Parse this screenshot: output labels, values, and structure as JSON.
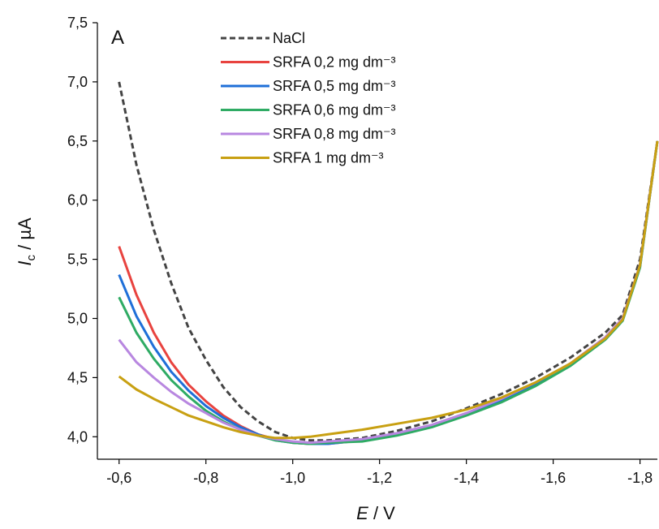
{
  "chart_data": {
    "type": "line",
    "panel_label": "A",
    "x_label": [
      "E",
      "/ V"
    ],
    "y_label": [
      "I",
      "c",
      "/ µA"
    ],
    "x": [
      -0.6,
      -0.64,
      -0.68,
      -0.72,
      -0.76,
      -0.8,
      -0.84,
      -0.88,
      -0.92,
      -0.96,
      -1.0,
      -1.04,
      -1.08,
      -1.16,
      -1.24,
      -1.32,
      -1.4,
      -1.48,
      -1.56,
      -1.64,
      -1.72,
      -1.76,
      -1.8,
      -1.84
    ],
    "series": [
      {
        "name": "NaCl",
        "color": "#444444",
        "dashed": true,
        "values": [
          7.0,
          6.3,
          5.75,
          5.3,
          4.92,
          4.65,
          4.42,
          4.25,
          4.13,
          4.04,
          3.99,
          3.97,
          3.97,
          3.99,
          4.05,
          4.13,
          4.24,
          4.36,
          4.5,
          4.67,
          4.88,
          5.03,
          5.5,
          6.5
        ]
      },
      {
        "name": "SRFA 0,2 mg dm⁻³",
        "color": "#e8433f",
        "values": [
          5.61,
          5.2,
          4.88,
          4.63,
          4.44,
          4.3,
          4.18,
          4.09,
          4.02,
          3.98,
          3.95,
          3.94,
          3.94,
          3.97,
          4.02,
          4.09,
          4.19,
          4.31,
          4.45,
          4.62,
          4.84,
          5.0,
          5.45,
          6.5
        ]
      },
      {
        "name": "SRFA 0,5 mg dm⁻³",
        "color": "#1f6fd8",
        "values": [
          5.37,
          5.02,
          4.76,
          4.55,
          4.39,
          4.26,
          4.16,
          4.08,
          4.02,
          3.97,
          3.95,
          3.94,
          3.94,
          3.97,
          4.02,
          4.09,
          4.19,
          4.3,
          4.44,
          4.61,
          4.83,
          4.99,
          5.44,
          6.5
        ]
      },
      {
        "name": "SRFA 0,6 mg dm⁻³",
        "color": "#2fab64",
        "values": [
          5.18,
          4.88,
          4.66,
          4.48,
          4.34,
          4.22,
          4.13,
          4.06,
          4.01,
          3.97,
          3.95,
          3.94,
          3.95,
          3.96,
          4.01,
          4.08,
          4.18,
          4.29,
          4.43,
          4.6,
          4.82,
          4.98,
          5.43,
          6.5
        ]
      },
      {
        "name": "SRFA 0,8 mg dm⁻³",
        "color": "#b887e0",
        "values": [
          4.82,
          4.63,
          4.5,
          4.38,
          4.28,
          4.2,
          4.12,
          4.06,
          4.01,
          3.98,
          3.96,
          3.95,
          3.96,
          3.98,
          4.03,
          4.1,
          4.2,
          4.32,
          4.46,
          4.62,
          4.84,
          5.0,
          5.45,
          6.5
        ]
      },
      {
        "name": "SRFA 1 mg dm⁻³",
        "color": "#c8a012",
        "values": [
          4.51,
          4.4,
          4.32,
          4.25,
          4.18,
          4.13,
          4.08,
          4.04,
          4.01,
          3.99,
          3.99,
          4.0,
          4.02,
          4.06,
          4.11,
          4.16,
          4.23,
          4.33,
          4.46,
          4.62,
          4.83,
          4.99,
          5.45,
          6.5
        ]
      }
    ],
    "xlim": [
      -0.55,
      -1.84
    ],
    "xticks": [
      {
        "value": -0.6,
        "label": "-0,6"
      },
      {
        "value": -0.8,
        "label": "-0,8"
      },
      {
        "value": -1.0,
        "label": "-1,0"
      },
      {
        "value": -1.2,
        "label": "-1,2"
      },
      {
        "value": -1.4,
        "label": "-1,4"
      },
      {
        "value": -1.6,
        "label": "-1,6"
      },
      {
        "value": -1.8,
        "label": "-1,8"
      }
    ],
    "ylim": [
      3.81,
      7.5
    ],
    "yticks": [
      {
        "value": 4.0,
        "label": "4,0"
      },
      {
        "value": 4.5,
        "label": "4,5"
      },
      {
        "value": 5.0,
        "label": "5,0"
      },
      {
        "value": 5.5,
        "label": "5,5"
      },
      {
        "value": 6.0,
        "label": "6,0"
      },
      {
        "value": 6.5,
        "label": "6,5"
      },
      {
        "value": 7.0,
        "label": "7,0"
      },
      {
        "value": 7.5,
        "label": "7,5"
      }
    ],
    "grid": false,
    "legend": "upper-left"
  }
}
